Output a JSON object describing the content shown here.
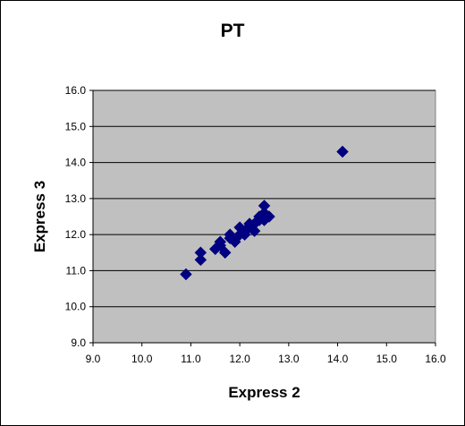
{
  "chart_data": {
    "type": "scatter",
    "title": "PT",
    "xlabel": "Express 2",
    "ylabel": "Express 3",
    "xlim": [
      9.0,
      16.0
    ],
    "ylim": [
      9.0,
      16.0
    ],
    "x_ticks": [
      "9.0",
      "10.0",
      "11.0",
      "12.0",
      "13.0",
      "14.0",
      "15.0",
      "16.0"
    ],
    "y_ticks": [
      "9.0",
      "10.0",
      "11.0",
      "12.0",
      "13.0",
      "14.0",
      "15.0",
      "16.0"
    ],
    "x_tick_values": [
      9,
      10,
      11,
      12,
      13,
      14,
      15,
      16
    ],
    "y_tick_values": [
      9,
      10,
      11,
      12,
      13,
      14,
      15,
      16
    ],
    "grid": "horizontal",
    "legend": "none",
    "colors": {
      "plot_background": "#c0c0c0",
      "marker": "#000080",
      "gridline": "#000000"
    },
    "series": [
      {
        "marker": "diamond",
        "points": [
          [
            10.9,
            10.9
          ],
          [
            11.2,
            11.3
          ],
          [
            11.2,
            11.5
          ],
          [
            11.5,
            11.6
          ],
          [
            11.6,
            11.7
          ],
          [
            11.6,
            11.8
          ],
          [
            11.7,
            11.5
          ],
          [
            11.8,
            11.9
          ],
          [
            11.8,
            12.0
          ],
          [
            11.9,
            11.8
          ],
          [
            12.0,
            12.0
          ],
          [
            12.0,
            12.2
          ],
          [
            12.1,
            12.0
          ],
          [
            12.1,
            12.1
          ],
          [
            12.2,
            12.2
          ],
          [
            12.2,
            12.3
          ],
          [
            12.3,
            12.1
          ],
          [
            12.3,
            12.3
          ],
          [
            12.4,
            12.4
          ],
          [
            12.4,
            12.5
          ],
          [
            12.5,
            12.4
          ],
          [
            12.5,
            12.6
          ],
          [
            12.5,
            12.8
          ],
          [
            12.6,
            12.5
          ],
          [
            14.1,
            14.3
          ]
        ]
      }
    ]
  }
}
